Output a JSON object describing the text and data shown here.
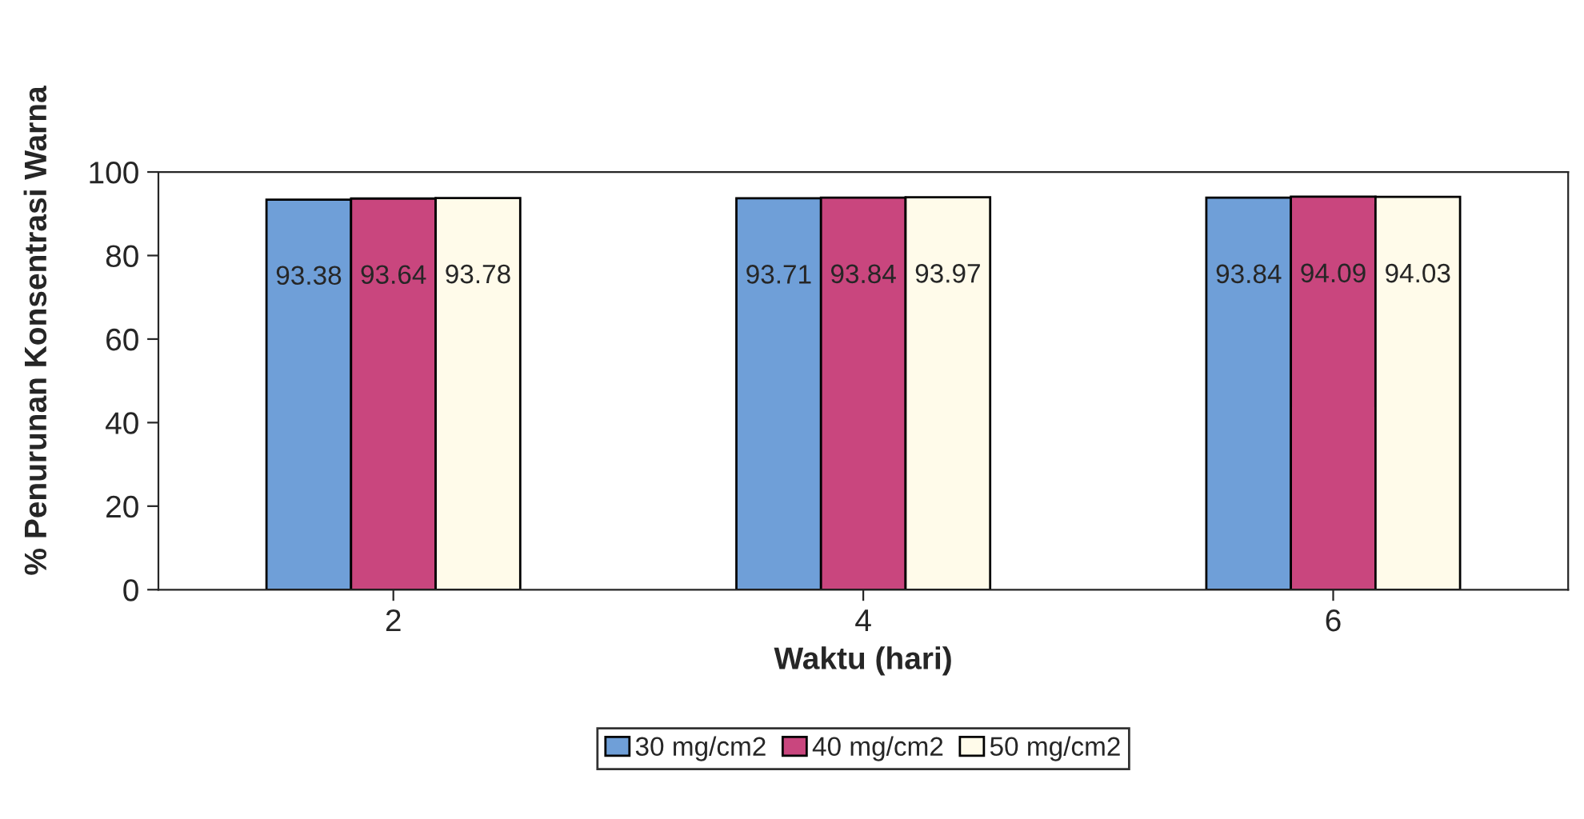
{
  "chart_data": {
    "type": "bar",
    "xlabel": "Waktu (hari)",
    "ylabel": "% Penurunan Konsentrasi Warna",
    "categories": [
      "2",
      "4",
      "6"
    ],
    "series": [
      {
        "name": "30 mg/cm2",
        "color": "#6f9fd8",
        "values": [
          93.38,
          93.71,
          93.84
        ]
      },
      {
        "name": "40 mg/cm2",
        "color": "#c9467e",
        "values": [
          93.64,
          93.84,
          94.09
        ]
      },
      {
        "name": "50 mg/cm2",
        "color": "#fffbea",
        "values": [
          93.78,
          93.97,
          94.03
        ]
      }
    ],
    "ylim": [
      0,
      100
    ],
    "yticks": [
      0,
      20,
      40,
      60,
      80,
      100
    ],
    "data_labels": true,
    "legend": "bottom",
    "grid": false
  }
}
